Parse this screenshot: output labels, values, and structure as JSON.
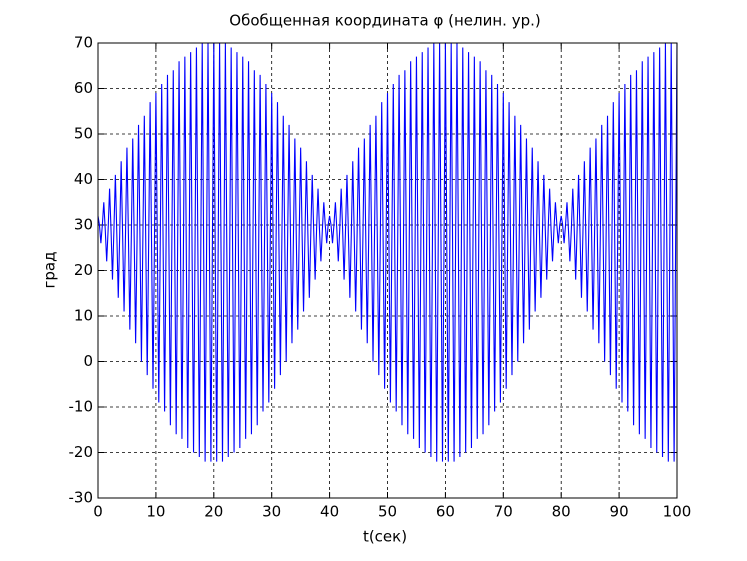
{
  "chart_data": {
    "type": "line",
    "title": "Обобщенная координата φ (нелин. ур.)",
    "x_label": "t(сек)",
    "y_label": "град",
    "color": "#0000ff",
    "grid": true,
    "xlim": [
      0,
      100
    ],
    "xticks": [
      0,
      10,
      20,
      30,
      40,
      50,
      60,
      70,
      80,
      90,
      100
    ],
    "ylim": [
      -30,
      70
    ],
    "yticks": [
      -30,
      -20,
      -10,
      0,
      10,
      20,
      30,
      40,
      50,
      60,
      70
    ],
    "x": [
      0,
      0.25,
      0.5,
      0.75,
      1,
      1.25,
      1.5,
      1.75,
      2,
      2.25,
      2.5,
      2.75,
      3,
      3.25,
      3.5,
      3.75,
      4,
      4.25,
      4.5,
      4.75,
      5,
      5.25,
      5.5,
      5.75,
      6,
      6.25,
      6.5,
      6.75,
      7,
      7.25,
      7.5,
      7.75,
      8,
      8.25,
      8.5,
      8.75,
      9,
      9.25,
      9.5,
      9.75,
      10,
      10.25,
      10.5,
      10.75,
      11,
      11.25,
      11.5,
      11.75,
      12,
      12.25,
      12.5,
      12.75,
      13,
      13.25,
      13.5,
      13.75,
      14,
      14.25,
      14.5,
      14.75,
      15,
      15.25,
      15.5,
      15.75,
      16,
      16.25,
      16.5,
      16.75,
      17,
      17.25,
      17.5,
      17.75,
      18,
      18.25,
      18.5,
      18.75,
      19,
      19.25,
      19.5,
      19.75,
      20,
      20.25,
      20.5,
      20.75,
      21,
      21.25,
      21.5,
      21.75,
      22,
      22.25,
      22.5,
      22.75,
      23,
      23.25,
      23.5,
      23.75,
      24,
      24.25,
      24.5,
      24.75,
      25,
      25.25,
      25.5,
      25.75,
      26,
      26.25,
      26.5,
      26.75,
      27,
      27.25,
      27.5,
      27.75,
      28,
      28.25,
      28.5,
      28.75,
      29,
      29.25,
      29.5,
      29.75,
      30,
      30.25,
      30.5,
      30.75,
      31,
      31.25,
      31.5,
      31.75,
      32,
      32.25,
      32.5,
      32.75,
      33,
      33.25,
      33.5,
      33.75,
      34,
      34.25,
      34.5,
      34.75,
      35,
      35.25,
      35.5,
      35.75,
      36,
      36.25,
      36.5,
      36.75,
      37,
      37.25,
      37.5,
      37.75,
      38,
      38.25,
      38.5,
      38.75,
      39,
      39.25,
      39.5,
      39.75,
      40,
      40.25,
      40.5,
      40.75,
      41,
      41.25,
      41.5,
      41.75,
      42,
      42.25,
      42.5,
      42.75,
      43,
      43.25,
      43.5,
      43.75,
      44,
      44.25,
      44.5,
      44.75,
      45,
      45.25,
      45.5,
      45.75,
      46,
      46.25,
      46.5,
      46.75,
      47,
      47.25,
      47.5,
      47.75,
      48,
      48.25,
      48.5,
      48.75,
      49,
      49.25,
      49.5,
      49.75,
      50,
      50.25,
      50.5,
      50.75,
      51,
      51.25,
      51.5,
      51.75,
      52,
      52.25,
      52.5,
      52.75,
      53,
      53.25,
      53.5,
      53.75,
      54,
      54.25,
      54.5,
      54.75,
      55,
      55.25,
      55.5,
      55.75,
      56,
      56.25,
      56.5,
      56.75,
      57,
      57.25,
      57.5,
      57.75,
      58,
      58.25,
      58.5,
      58.75,
      59,
      59.25,
      59.5,
      59.75,
      60,
      60.25,
      60.5,
      60.75,
      61,
      61.25,
      61.5,
      61.75,
      62,
      62.25,
      62.5,
      62.75,
      63,
      63.25,
      63.5,
      63.75,
      64,
      64.25,
      64.5,
      64.75,
      65,
      65.25,
      65.5,
      65.75,
      66,
      66.25,
      66.5,
      66.75,
      67,
      67.25,
      67.5,
      67.75,
      68,
      68.25,
      68.5,
      68.75,
      69,
      69.25,
      69.5,
      69.75,
      70,
      70.25,
      70.5,
      70.75,
      71,
      71.25,
      71.5,
      71.75,
      72,
      72.25,
      72.5,
      72.75,
      73,
      73.25,
      73.5,
      73.75,
      74,
      74.25,
      74.5,
      74.75,
      75,
      75.25,
      75.5,
      75.75,
      76,
      76.25,
      76.5,
      76.75,
      77,
      77.25,
      77.5,
      77.75,
      78,
      78.25,
      78.5,
      78.75,
      79,
      79.25,
      79.5,
      79.75,
      80,
      80.25,
      80.5,
      80.75,
      81,
      81.25,
      81.5,
      81.75,
      82,
      82.25,
      82.5,
      82.75,
      83,
      83.25,
      83.5,
      83.75,
      84,
      84.25,
      84.5,
      84.75,
      85,
      85.25,
      85.5,
      85.75,
      86,
      86.25,
      86.5,
      86.75,
      87,
      87.25,
      87.5,
      87.75,
      88,
      88.25,
      88.5,
      88.75,
      89,
      89.25,
      89.5,
      89.75,
      90,
      90.25,
      90.5,
      90.75,
      91,
      91.25,
      91.5,
      91.75,
      92,
      92.25,
      92.5,
      92.75,
      93,
      93.25,
      93.5,
      93.75,
      94,
      94.25,
      94.5,
      94.75,
      95,
      95.25,
      95.5,
      95.75,
      96,
      96.25,
      96.5,
      96.75,
      97,
      97.25,
      97.5,
      97.75,
      98,
      98.25,
      98.5,
      98.75,
      99,
      99.25,
      99.5,
      99.75,
      100
    ],
    "values": [
      32,
      30,
      26,
      30,
      35,
      29,
      22,
      29,
      38,
      29,
      18,
      29,
      41,
      28,
      14,
      28,
      44,
      28,
      11,
      28,
      47,
      28,
      7,
      27,
      49,
      27,
      4,
      27,
      52,
      27,
      0,
      27,
      54,
      26,
      -3,
      26,
      57,
      26,
      -6,
      26,
      59,
      26,
      -9,
      26,
      61,
      25,
      -11,
      25,
      63,
      25,
      -14,
      25,
      64,
      25,
      -16,
      25,
      66,
      25,
      -17,
      24,
      67,
      24,
      -19,
      24,
      68,
      24,
      -20,
      24,
      69,
      24,
      -21,
      24,
      70,
      24,
      -22,
      24,
      70,
      24,
      -22,
      24,
      70,
      24,
      -22,
      24,
      70,
      24,
      -22,
      24,
      70,
      24,
      -21,
      24,
      69,
      24,
      -20,
      24,
      68,
      24,
      -19,
      24,
      67,
      24,
      -17,
      25,
      66,
      25,
      -16,
      25,
      64,
      25,
      -14,
      25,
      63,
      25,
      -11,
      25,
      61,
      26,
      -9,
      26,
      59,
      26,
      -6,
      26,
      57,
      26,
      -3,
      26,
      54,
      27,
      0,
      27,
      52,
      27,
      4,
      27,
      49,
      27,
      7,
      28,
      47,
      28,
      11,
      28,
      44,
      28,
      14,
      28,
      41,
      29,
      18,
      29,
      38,
      29,
      22,
      29,
      35,
      30,
      26,
      30,
      32,
      30,
      26,
      30,
      35,
      29,
      22,
      29,
      38,
      29,
      18,
      29,
      41,
      28,
      14,
      28,
      44,
      28,
      11,
      28,
      47,
      28,
      7,
      27,
      49,
      27,
      4,
      27,
      52,
      27,
      0,
      27,
      54,
      26,
      -3,
      26,
      57,
      26,
      -6,
      26,
      59,
      26,
      -9,
      26,
      61,
      25,
      -11,
      25,
      63,
      25,
      -14,
      25,
      64,
      25,
      -16,
      25,
      66,
      25,
      -17,
      24,
      67,
      24,
      -19,
      24,
      68,
      24,
      -20,
      24,
      69,
      24,
      -21,
      24,
      70,
      24,
      -22,
      24,
      70,
      24,
      -22,
      24,
      70,
      24,
      -22,
      24,
      70,
      24,
      -22,
      24,
      70,
      24,
      -21,
      24,
      69,
      24,
      -20,
      24,
      68,
      24,
      -19,
      24,
      67,
      24,
      -17,
      25,
      66,
      25,
      -16,
      25,
      64,
      25,
      -14,
      25,
      63,
      25,
      -11,
      25,
      61,
      26,
      -9,
      26,
      59,
      26,
      -6,
      26,
      57,
      26,
      -3,
      26,
      54,
      27,
      0,
      27,
      52,
      27,
      4,
      27,
      49,
      27,
      7,
      28,
      47,
      28,
      11,
      28,
      44,
      28,
      14,
      28,
      41,
      29,
      18,
      29,
      38,
      29,
      22,
      29,
      35,
      30,
      26,
      30,
      32,
      30,
      26,
      30,
      35,
      29,
      22,
      29,
      38,
      29,
      18,
      29,
      41,
      28,
      14,
      28,
      44,
      28,
      11,
      28,
      47,
      28,
      7,
      27,
      49,
      27,
      4,
      27,
      52,
      27,
      0,
      27,
      54,
      26,
      -3,
      26,
      57,
      26,
      -6,
      26,
      59,
      26,
      -9,
      26,
      61,
      25,
      -11,
      25,
      63,
      25,
      -14,
      25,
      64,
      25,
      -16,
      25,
      66,
      25,
      -17,
      24,
      67,
      24,
      -19,
      24,
      68,
      24,
      -20,
      24,
      69,
      24,
      -21,
      24,
      70,
      24,
      -22,
      24,
      70,
      24,
      -22,
      24,
      70
    ]
  }
}
